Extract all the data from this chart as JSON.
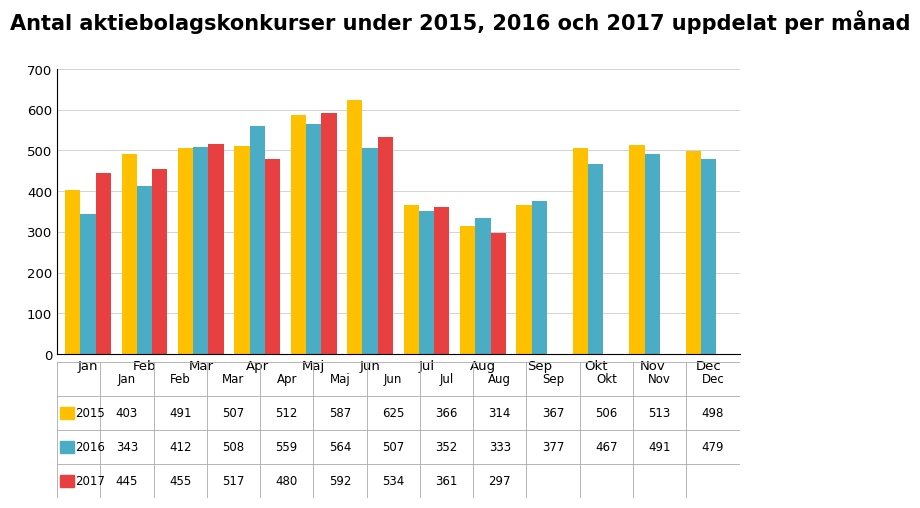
{
  "title": "Antal aktiebolagskonkurser under 2015, 2016 och 2017 uppdelat per månad",
  "months": [
    "Jan",
    "Feb",
    "Mar",
    "Apr",
    "Maj",
    "Jun",
    "Jul",
    "Aug",
    "Sep",
    "Okt",
    "Nov",
    "Dec"
  ],
  "series": {
    "2015": [
      403,
      491,
      507,
      512,
      587,
      625,
      366,
      314,
      367,
      506,
      513,
      498
    ],
    "2016": [
      343,
      412,
      508,
      559,
      564,
      507,
      352,
      333,
      377,
      467,
      491,
      479
    ],
    "2017": [
      445,
      455,
      517,
      480,
      592,
      534,
      361,
      297,
      null,
      null,
      null,
      null
    ]
  },
  "colors": {
    "2015": "#FFC000",
    "2016": "#4BACC6",
    "2017": "#E84040"
  },
  "ylim": [
    0,
    700
  ],
  "yticks": [
    0,
    100,
    200,
    300,
    400,
    500,
    600,
    700
  ],
  "table_data": {
    "2015": [
      "403",
      "491",
      "507",
      "512",
      "587",
      "625",
      "366",
      "314",
      "367",
      "506",
      "513",
      "498"
    ],
    "2016": [
      "343",
      "412",
      "508",
      "559",
      "564",
      "507",
      "352",
      "333",
      "377",
      "467",
      "491",
      "479"
    ],
    "2017": [
      "445",
      "455",
      "517",
      "480",
      "592",
      "534",
      "361",
      "297",
      "",
      "",
      "",
      ""
    ]
  },
  "background_color": "#FFFFFF",
  "bar_width": 0.27,
  "title_fontsize": 15,
  "tick_fontsize": 9.5,
  "table_fontsize": 8.5
}
